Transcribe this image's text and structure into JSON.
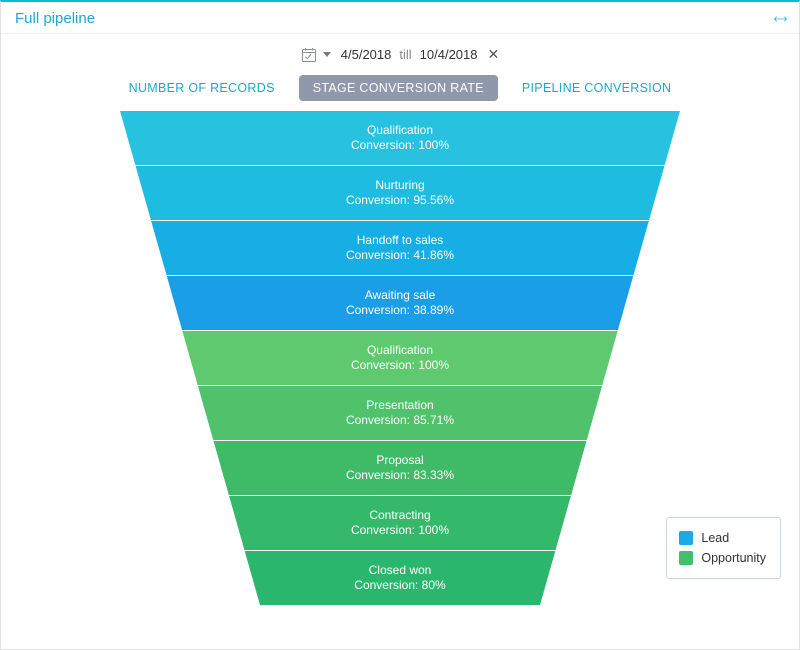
{
  "panel": {
    "title": "Full pipeline",
    "accent_color": "#1ca9cd",
    "border_top_color": "#00bcd4"
  },
  "date_filter": {
    "start": "4/5/2018",
    "till_label": "till",
    "end": "10/4/2018"
  },
  "tabs": [
    {
      "label": "NUMBER OF RECORDS",
      "active": false
    },
    {
      "label": "STAGE CONVERSION RATE",
      "active": true
    },
    {
      "label": "PIPELINE CONVERSION",
      "active": false
    }
  ],
  "tab_active_bg": "#8f99ab",
  "tab_active_fg": "#ffffff",
  "tab_inactive_fg": "#1aa9d0",
  "funnel": {
    "type": "funnel",
    "top_width": 560,
    "bottom_width": 280,
    "segment_height": 54,
    "gap": 1,
    "text_color": "#ffffff",
    "label_fontsize": 12,
    "conversion_prefix": "Conversion: ",
    "stages": [
      {
        "name": "Qualification",
        "conversion": "100%",
        "color": "#27c2e0",
        "group": "Lead"
      },
      {
        "name": "Nurturing",
        "conversion": "95.56%",
        "color": "#1dbce0",
        "group": "Lead"
      },
      {
        "name": "Handoff to sales",
        "conversion": "41.86%",
        "color": "#16aee4",
        "group": "Lead"
      },
      {
        "name": "Awaiting sale",
        "conversion": "38.89%",
        "color": "#1a9ee8",
        "group": "Lead"
      },
      {
        "name": "Qualification",
        "conversion": "100%",
        "color": "#5fc96f",
        "group": "Opportunity"
      },
      {
        "name": "Presentation",
        "conversion": "85.71%",
        "color": "#4fc26b",
        "group": "Opportunity"
      },
      {
        "name": "Proposal",
        "conversion": "83.33%",
        "color": "#3fbb68",
        "group": "Opportunity"
      },
      {
        "name": "Contracting",
        "conversion": "100%",
        "color": "#34b96b",
        "group": "Opportunity"
      },
      {
        "name": "Closed won",
        "conversion": "80%",
        "color": "#2bb66d",
        "group": "Opportunity"
      }
    ]
  },
  "legend": {
    "border_color": "#cfd6dc",
    "items": [
      {
        "label": "Lead",
        "color": "#1aaae5"
      },
      {
        "label": "Opportunity",
        "color": "#3fc06a"
      }
    ]
  }
}
